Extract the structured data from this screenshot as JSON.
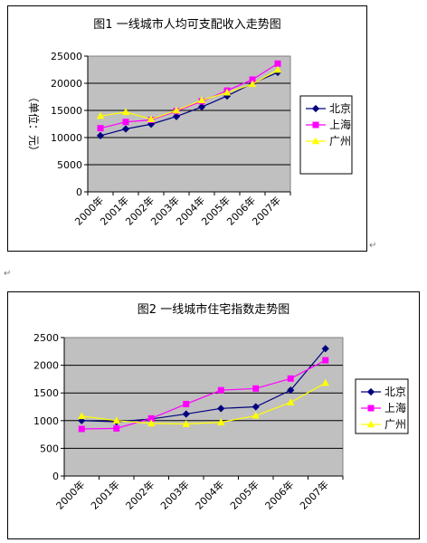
{
  "colors": {
    "beijing": "#000080",
    "shanghai": "#ff00ff",
    "guangzhou": "#ffff00",
    "plot_bg": "#c0c0c0"
  },
  "marks": {
    "return1": "↵",
    "return2": "↵"
  },
  "chart_data": [
    {
      "type": "line",
      "title": "图1 一线城市人均可支配收入走势图",
      "ylabel": "（单位：元）",
      "xlabel": "",
      "categories": [
        "2000年",
        "2001年",
        "2002年",
        "2003年",
        "2004年",
        "2005年",
        "2006年",
        "2007年"
      ],
      "yticks": [
        "0",
        "5000",
        "10000",
        "15000",
        "20000",
        "25000"
      ],
      "ylim": [
        0,
        25000
      ],
      "grid": true,
      "legend_position": "right",
      "series": [
        {
          "name": "北京",
          "marker": "diamond",
          "values": [
            10350,
            11580,
            12460,
            13880,
            15640,
            17650,
            19980,
            21990
          ]
        },
        {
          "name": "上海",
          "marker": "square",
          "values": [
            11720,
            12880,
            13250,
            14870,
            16680,
            18650,
            20670,
            23620
          ]
        },
        {
          "name": "广州",
          "marker": "triangle",
          "values": [
            13970,
            14690,
            13380,
            15000,
            16880,
            18290,
            19850,
            22470
          ]
        }
      ]
    },
    {
      "type": "line",
      "title": "图2 一线城市住宅指数走势图",
      "ylabel": "",
      "xlabel": "",
      "categories": [
        "2000年",
        "2001年",
        "2002年",
        "2003年",
        "2004年",
        "2005年",
        "2006年",
        "2007年"
      ],
      "yticks": [
        "0",
        "500",
        "1000",
        "1500",
        "2000",
        "2500"
      ],
      "ylim": [
        0,
        2500
      ],
      "grid": true,
      "legend_position": "right",
      "series": [
        {
          "name": "北京",
          "marker": "diamond",
          "values": [
            1000,
            980,
            1030,
            1120,
            1220,
            1250,
            1550,
            2300
          ]
        },
        {
          "name": "上海",
          "marker": "square",
          "values": [
            850,
            860,
            1040,
            1300,
            1550,
            1580,
            1760,
            2090
          ]
        },
        {
          "name": "广州",
          "marker": "triangle",
          "values": [
            1080,
            1000,
            950,
            940,
            970,
            1090,
            1330,
            1680
          ]
        }
      ]
    }
  ]
}
